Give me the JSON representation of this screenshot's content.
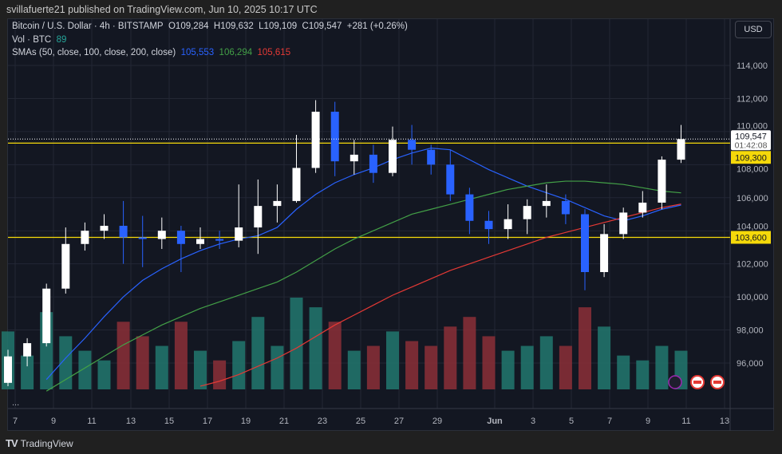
{
  "header": {
    "published": "svillafuerte21 published on TradingView.com, Jun 10, 2025 10:17 UTC"
  },
  "legend": {
    "symbol": "Bitcoin / U.S. Dollar · 4h · BITSTAMP",
    "open": "O109,284",
    "high": "H109,632",
    "low": "L109,109",
    "close": "C109,547",
    "change": "+281 (+0.26%)",
    "vol_label": "Vol · BTC",
    "vol_value": "89",
    "sma_label": "SMAs (50, close, 100, close, 200, close)",
    "sma50": "105,553",
    "sma100": "106,294",
    "sma200": "105,615"
  },
  "currency": "USD",
  "more": "...",
  "footer": {
    "brand": "TradingView",
    "logo": "TV"
  },
  "colors": {
    "up": "#ffffff",
    "down": "#2962ff",
    "vol_up": "#22786e",
    "vol_down": "#8c2f37",
    "sma50": "#2962ff",
    "sma100": "#43a047",
    "sma200": "#e53935",
    "level": "#f5d90a",
    "sma50_text": "#2962ff",
    "sma100_text": "#43a047",
    "sma200_text": "#e53935",
    "vol_text": "#26a69a"
  },
  "chart_data": {
    "type": "candlestick",
    "title": "Bitcoin / U.S. Dollar · 4h · BITSTAMP",
    "x_ticks": [
      "7",
      "9",
      "11",
      "13",
      "15",
      "17",
      "19",
      "21",
      "23",
      "25",
      "27",
      "29",
      "Jun",
      "3",
      "5",
      "7",
      "9",
      "11",
      "13"
    ],
    "y_ticks": [
      "114,000",
      "112,000",
      "110,000",
      "108,000",
      "106,000",
      "104,000",
      "102,000",
      "100,000",
      "98,000",
      "96,000"
    ],
    "ylim": [
      94700,
      115500
    ],
    "dates": [
      "May 6",
      "May 7",
      "May 8",
      "May 9",
      "May 10",
      "May 11",
      "May 12",
      "May 13",
      "May 14",
      "May 15",
      "May 16",
      "May 17",
      "May 18",
      "May 19",
      "May 20",
      "May 21",
      "May 22",
      "May 23",
      "May 24",
      "May 25",
      "May 26",
      "May 27",
      "May 28",
      "May 29",
      "May 30",
      "May 31",
      "Jun 1",
      "Jun 2",
      "Jun 3",
      "Jun 4",
      "Jun 5",
      "Jun 6",
      "Jun 7",
      "Jun 8",
      "Jun 9",
      "Jun 10"
    ],
    "ohlc": [
      [
        94800,
        96800,
        94600,
        96400
      ],
      [
        96400,
        97500,
        95800,
        97200
      ],
      [
        97200,
        100800,
        97000,
        100500
      ],
      [
        100500,
        104200,
        100200,
        103200
      ],
      [
        103200,
        104500,
        102800,
        104000
      ],
      [
        104000,
        105000,
        103500,
        104300
      ],
      [
        104300,
        105800,
        102000,
        103600
      ],
      [
        103600,
        104900,
        101800,
        103500
      ],
      [
        103500,
        104800,
        102900,
        104000
      ],
      [
        104000,
        104300,
        101500,
        103200
      ],
      [
        103200,
        104200,
        102900,
        103500
      ],
      [
        103500,
        104000,
        102900,
        103400
      ],
      [
        103400,
        106800,
        103000,
        104200
      ],
      [
        104200,
        107100,
        102600,
        105500
      ],
      [
        105500,
        106800,
        104500,
        105800
      ],
      [
        105800,
        109800,
        105700,
        107800
      ],
      [
        107800,
        111900,
        107500,
        111200
      ],
      [
        111200,
        111800,
        107300,
        108200
      ],
      [
        108200,
        109500,
        107400,
        108600
      ],
      [
        108600,
        109200,
        106900,
        107500
      ],
      [
        107500,
        110300,
        107300,
        109500
      ],
      [
        109500,
        110400,
        108000,
        108900
      ],
      [
        108900,
        109200,
        107400,
        108000
      ],
      [
        108000,
        108900,
        105800,
        106200
      ],
      [
        106200,
        106600,
        103800,
        104600
      ],
      [
        104600,
        105200,
        103200,
        104100
      ],
      [
        104100,
        105600,
        103500,
        104700
      ],
      [
        104700,
        105900,
        103800,
        105500
      ],
      [
        105500,
        106800,
        104800,
        105800
      ],
      [
        105800,
        106200,
        104400,
        105000
      ],
      [
        105000,
        105300,
        100400,
        101500
      ],
      [
        101500,
        104400,
        101200,
        103800
      ],
      [
        103800,
        105400,
        103500,
        105100
      ],
      [
        105100,
        106400,
        104800,
        105700
      ],
      [
        105700,
        108500,
        105300,
        108300
      ],
      [
        108300,
        110400,
        108100,
        109547
      ]
    ],
    "volume": [
      60,
      35,
      80,
      55,
      40,
      30,
      70,
      55,
      45,
      70,
      40,
      30,
      50,
      75,
      45,
      95,
      85,
      70,
      40,
      45,
      60,
      50,
      45,
      65,
      75,
      55,
      40,
      45,
      55,
      45,
      85,
      65,
      35,
      30,
      45,
      40
    ],
    "sma50": [
      null,
      null,
      95000,
      96300,
      97500,
      98800,
      100000,
      101000,
      101700,
      102300,
      102800,
      103200,
      103500,
      103700,
      104200,
      105300,
      106200,
      106900,
      107400,
      107800,
      108300,
      108700,
      109000,
      108900,
      108300,
      107700,
      107200,
      106700,
      106300,
      105900,
      105400,
      104900,
      104600,
      104900,
      105300,
      105553
    ],
    "sma100": [
      null,
      null,
      94300,
      95000,
      95700,
      96400,
      97100,
      97700,
      98300,
      98800,
      99300,
      99700,
      100100,
      100500,
      100900,
      101500,
      102200,
      102900,
      103500,
      104000,
      104500,
      105000,
      105300,
      105600,
      105900,
      106200,
      106500,
      106700,
      106900,
      107000,
      107000,
      106900,
      106800,
      106600,
      106400,
      106294
    ],
    "sma200": [
      null,
      null,
      null,
      null,
      null,
      null,
      null,
      null,
      null,
      null,
      94600,
      94900,
      95300,
      95800,
      96300,
      96900,
      97600,
      98300,
      98900,
      99500,
      100100,
      100600,
      101100,
      101600,
      102000,
      102400,
      102800,
      103200,
      103600,
      103900,
      104200,
      104500,
      104800,
      105100,
      105400,
      105615
    ],
    "levels": [
      {
        "price": 109300,
        "label": "109,300"
      },
      {
        "price": 103600,
        "label": "103,600"
      }
    ],
    "last_price": {
      "label": "109,547",
      "countdown": "01:42:08",
      "price": 109547
    }
  }
}
